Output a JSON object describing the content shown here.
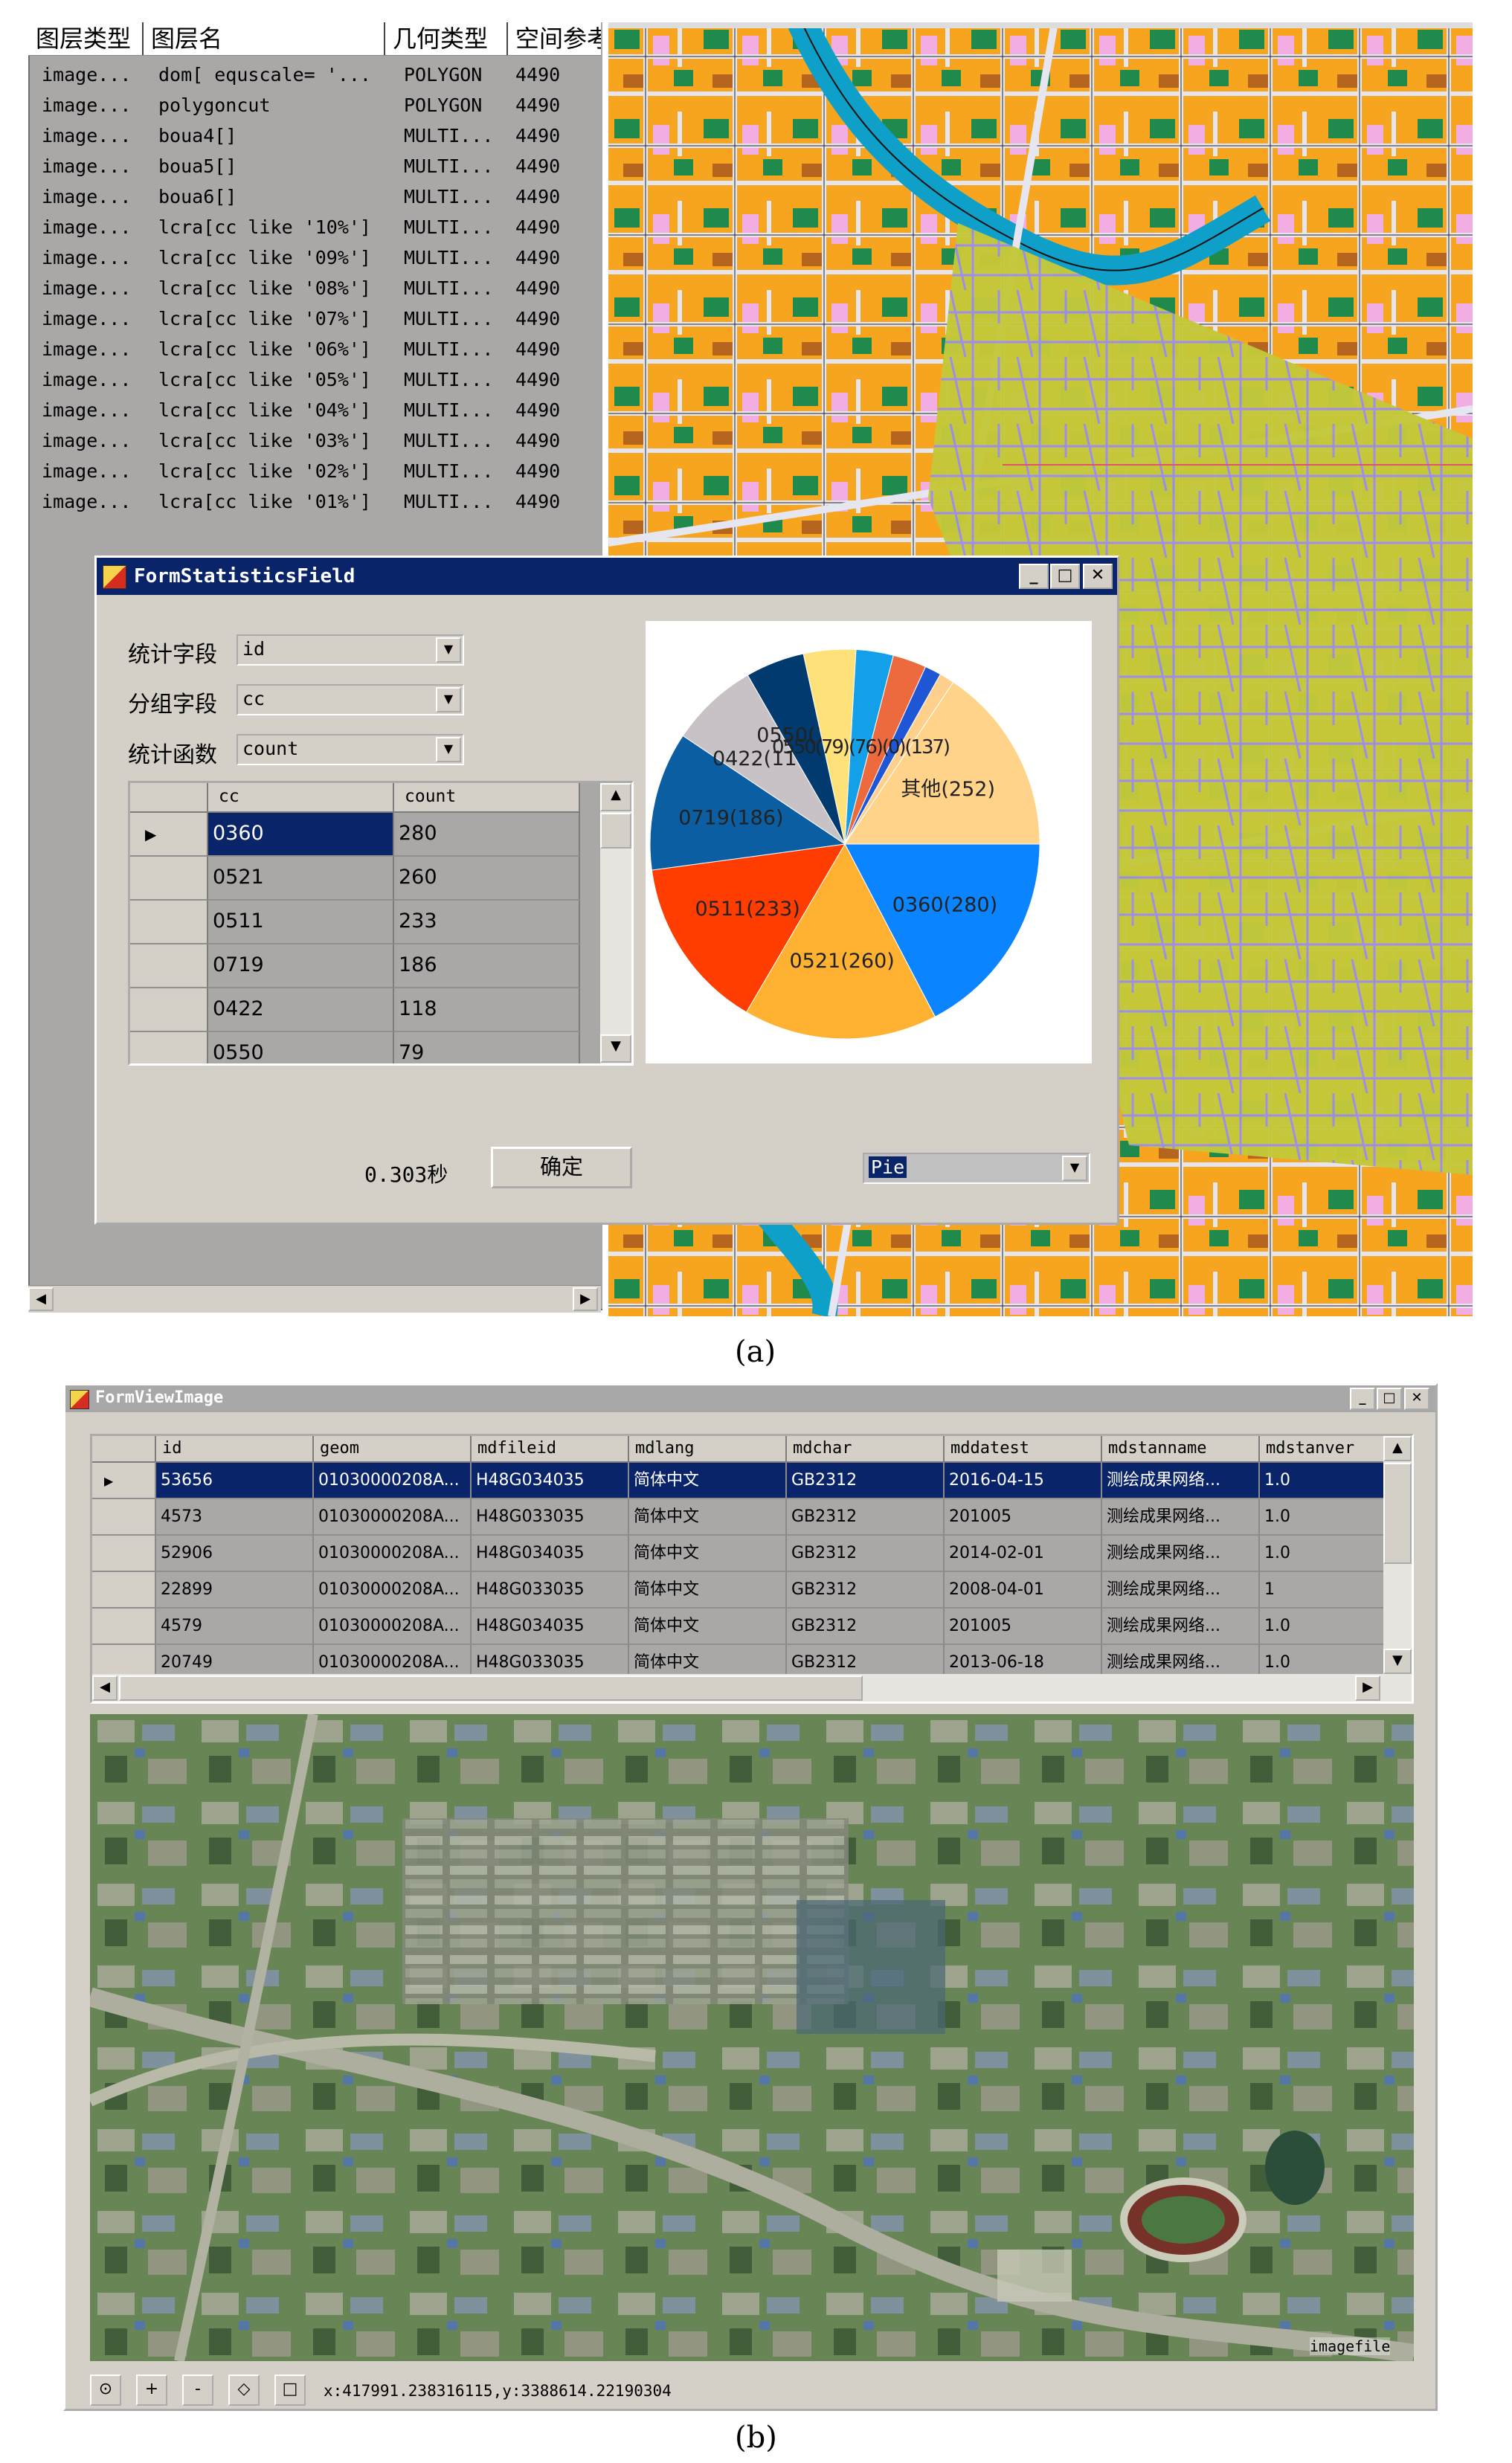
{
  "panel_a": {
    "layer_list": {
      "headers": [
        "图层类型",
        "图层名",
        "几何类型",
        "空间参考"
      ],
      "rows": [
        [
          "image...",
          "dom[ equscale= '...",
          "POLYGON",
          "4490"
        ],
        [
          "image...",
          "polygoncut",
          "POLYGON",
          "4490"
        ],
        [
          "image...",
          "boua4[]",
          "MULTI...",
          "4490"
        ],
        [
          "image...",
          "boua5[]",
          "MULTI...",
          "4490"
        ],
        [
          "image...",
          "boua6[]",
          "MULTI...",
          "4490"
        ],
        [
          "image...",
          "lcra[cc like '10%']",
          "MULTI...",
          "4490"
        ],
        [
          "image...",
          "lcra[cc like '09%']",
          "MULTI...",
          "4490"
        ],
        [
          "image...",
          "lcra[cc like '08%']",
          "MULTI...",
          "4490"
        ],
        [
          "image...",
          "lcra[cc like '07%']",
          "MULTI...",
          "4490"
        ],
        [
          "image...",
          "lcra[cc like '06%']",
          "MULTI...",
          "4490"
        ],
        [
          "image...",
          "lcra[cc like '05%']",
          "MULTI...",
          "4490"
        ],
        [
          "image...",
          "lcra[cc like '04%']",
          "MULTI...",
          "4490"
        ],
        [
          "image...",
          "lcra[cc like '03%']",
          "MULTI...",
          "4490"
        ],
        [
          "image...",
          "lcra[cc like '02%']",
          "MULTI...",
          "4490"
        ],
        [
          "image...",
          "lcra[cc like '01%']",
          "MULTI...",
          "4490"
        ]
      ]
    },
    "dialog": {
      "title": "FormStatisticsField",
      "stat_field_label": "统计字段",
      "stat_field_value": "id",
      "group_field_label": "分组字段",
      "group_field_value": "cc",
      "stat_func_label": "统计函数",
      "stat_func_value": "count",
      "grid_headers": [
        "cc",
        "count"
      ],
      "grid_rows": [
        [
          "0360",
          "280"
        ],
        [
          "0521",
          "260"
        ],
        [
          "0511",
          "233"
        ],
        [
          "0719",
          "186"
        ],
        [
          "0422",
          "118"
        ],
        [
          "0550",
          "79"
        ]
      ],
      "elapsed": "0.303秒",
      "ok_label": "确定",
      "chart_type_value": "Pie"
    },
    "caption": "(a)"
  },
  "chart_data": {
    "type": "pie",
    "categories": [
      "0360",
      "0521",
      "0511",
      "0719",
      "0422",
      "0550",
      "",
      "",
      "",
      "",
      "",
      "其他"
    ],
    "values": [
      280,
      260,
      233,
      186,
      118,
      79,
      70,
      50,
      45,
      22,
      20,
      252
    ],
    "labels": [
      "0360(280)",
      "0521(260)",
      "0511(233)",
      "0719(186)",
      "0422(118)",
      "0550(79)",
      "",
      "",
      "",
      "",
      "",
      "其他(252)"
    ],
    "colors": [
      "#0a84ff",
      "#ffb132",
      "#ff3d00",
      "#0b5ea1",
      "#c8c2c7",
      "#003a6e",
      "#ffe17a",
      "#14a0e9",
      "#ec6a3e",
      "#1e56d6",
      "#ffd08c",
      "#ffd38a"
    ],
    "overlap_text": "0550(79)(76)(0)(137)"
  },
  "panel_b": {
    "title": "FormViewImage",
    "columns": [
      "id",
      "geom",
      "mdfileid",
      "mdlang",
      "mdchar",
      "mddatest",
      "mdstanname",
      "mdstanver"
    ],
    "rows": [
      [
        "53656",
        "01030000208A...",
        "H48G034035",
        "简体中文",
        "GB2312",
        "2016-04-15",
        "测绘成果网络...",
        "1.0"
      ],
      [
        "4573",
        "01030000208A...",
        "H48G033035",
        "简体中文",
        "GB2312",
        "201005",
        "测绘成果网络...",
        "1.0"
      ],
      [
        "52906",
        "01030000208A...",
        "H48G034035",
        "简体中文",
        "GB2312",
        "2014-02-01",
        "测绘成果网络...",
        "1.0"
      ],
      [
        "22899",
        "01030000208A...",
        "H48G033035",
        "简体中文",
        "GB2312",
        "2008-04-01",
        "测绘成果网络...",
        "1"
      ],
      [
        "4579",
        "01030000208A...",
        "H48G034035",
        "简体中文",
        "GB2312",
        "201005",
        "测绘成果网络...",
        "1.0"
      ],
      [
        "20749",
        "01030000208A...",
        "H48G033035",
        "简体中文",
        "GB2312",
        "2013-06-18",
        "测绘成果网络...",
        "1.0"
      ]
    ],
    "image_label": "imagefile",
    "coords": "x:417991.238316115,y:3388614.22190304",
    "caption": "(b)"
  },
  "colors": {
    "titlebar": "#0a246a",
    "selection": "#0a246a",
    "gray_bg": "#aaa7a7",
    "face": "#d4d0c8",
    "map_orange": "#f7a51e",
    "map_green": "#1f8a4c",
    "map_pink": "#f2aee3",
    "overlay_yellow": "#c3c83a",
    "river": "#0ea0c8"
  },
  "icons": [
    "app-icon",
    "minimize-icon",
    "maximize-icon",
    "close-icon",
    "dropdown-arrow-icon",
    "row-pointer-icon",
    "scroll-up-icon",
    "scroll-down-icon",
    "scroll-left-icon",
    "scroll-right-icon",
    "pan-icon",
    "zoom-in-icon",
    "zoom-out-icon",
    "full-extent-icon",
    "select-icon"
  ]
}
